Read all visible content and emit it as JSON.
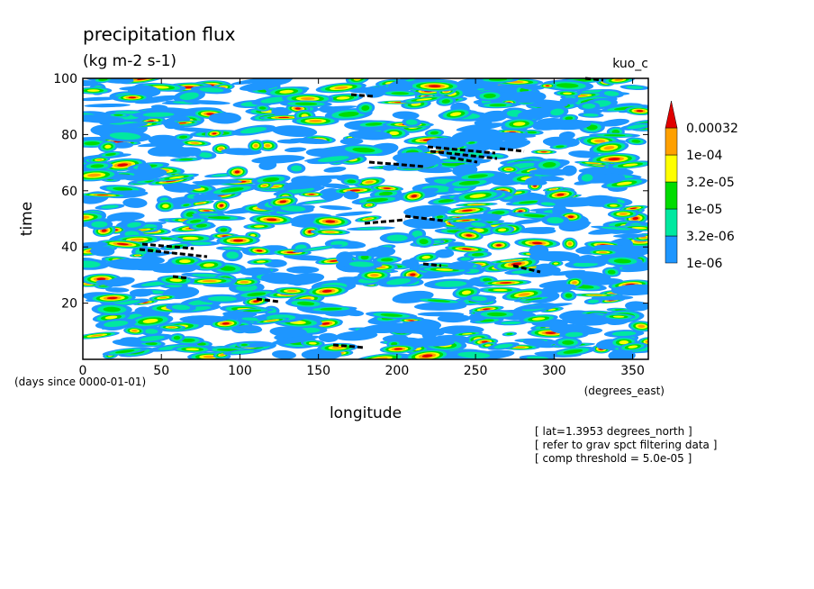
{
  "chart_data": {
    "type": "contour",
    "title": "precipitation flux",
    "subtitle": "(kg m-2 s-1)",
    "label": "kuo_c",
    "xlabel": "longitude",
    "ylabel": "time",
    "x_units": "(degrees_east)",
    "y_units": "(days since 0000-01-01)",
    "xlim": [
      0,
      360
    ],
    "ylim": [
      0,
      100
    ],
    "xticks": [
      0,
      50,
      100,
      150,
      200,
      250,
      300,
      350
    ],
    "yticks": [
      20,
      40,
      60,
      80,
      100
    ],
    "colorbar": {
      "levels": [
        {
          "value": 1e-06,
          "label": "1e-06"
        },
        {
          "value": 3.2e-06,
          "label": "3.2e-06"
        },
        {
          "value": 1e-05,
          "label": "1e-05"
        },
        {
          "value": 3.2e-05,
          "label": "3.2e-05"
        },
        {
          "value": 0.0001,
          "label": "1e-04"
        },
        0.00032
      ],
      "colors": [
        "#1e96ff",
        "#00e8a0",
        "#00dc00",
        "#ffff00",
        "#ffa000"
      ],
      "extend_color": "#e00000"
    },
    "annotations": [
      "[ lat=1.3953 degrees_north ]",
      "[ refer to grav spct filtering data ]",
      "[ comp threshold = 5.0e-05 ]"
    ]
  }
}
